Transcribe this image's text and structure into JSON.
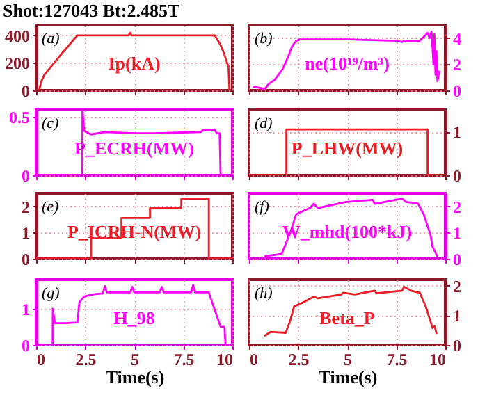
{
  "chart_data": [
    {
      "type": "line",
      "title": "Shot:127043  Bt:2.485T",
      "annotations": [
        "(a)",
        "Ip(kA)"
      ],
      "xlim": [
        0,
        10
      ],
      "xticks": [
        0,
        2.5,
        5,
        7.5,
        10
      ],
      "ylim": [
        0,
        475
      ],
      "yticks": [
        0,
        200,
        400
      ],
      "grid": true,
      "tick_labels": "y",
      "series": [
        {
          "color": "#ee1c25",
          "x": [
            0.15,
            0.25,
            0.4,
            1.2,
            2.1,
            4.7,
            4.8,
            4.85,
            9.1,
            9.4,
            9.6,
            9.75,
            9.8,
            9.85
          ],
          "values": [
            0,
            60,
            110,
            250,
            400,
            400,
            420,
            400,
            400,
            330,
            260,
            190,
            180,
            0
          ]
        }
      ]
    },
    {
      "type": "line",
      "annotations": [
        "(b)",
        "ne(10¹⁹/m³)"
      ],
      "xlim": [
        0,
        10
      ],
      "xticks": [
        0,
        2.5,
        5,
        7.5,
        10
      ],
      "ylim": [
        0,
        5
      ],
      "yticks": [
        0,
        2,
        4
      ],
      "grid": true,
      "tick_labels": "y",
      "series": [
        {
          "color": "#ff00ff",
          "x": [
            0.2,
            0.5,
            0.8,
            1.0,
            1.3,
            1.7,
            2.0,
            2.2,
            2.4,
            2.6,
            5,
            7.5,
            7.8,
            7.9,
            8.7,
            8.9,
            9.1,
            9.2,
            9.3,
            9.4,
            9.45,
            9.5,
            9.55,
            9.6,
            9.7
          ],
          "values": [
            0.3,
            0.2,
            0.1,
            0.5,
            0.8,
            1.6,
            2.6,
            3.4,
            3.8,
            3.9,
            3.9,
            3.8,
            3.7,
            3.8,
            3.8,
            4.1,
            4.4,
            4.0,
            4.5,
            2.0,
            4.3,
            1.2,
            3.0,
            0.7,
            1.5
          ]
        }
      ]
    },
    {
      "type": "line",
      "annotations": [
        "(c)",
        "P_ECRH(MW)"
      ],
      "xlim": [
        0,
        10
      ],
      "xticks": [
        0,
        2.5,
        5,
        7.5,
        10
      ],
      "ylim": [
        0,
        0.56
      ],
      "yticks": [
        0,
        0.5
      ],
      "grid": true,
      "tick_labels": "y",
      "series": [
        {
          "color": "#ff00ff",
          "x": [
            0,
            2.35,
            2.36,
            2.45,
            2.8,
            3.5,
            5,
            6,
            8.4,
            8.5,
            9.1,
            9.2,
            9.35,
            9.4,
            10
          ],
          "values": [
            0,
            0,
            0.56,
            0.38,
            0.35,
            0.37,
            0.36,
            0.36,
            0.37,
            0.39,
            0.39,
            0.36,
            0.36,
            0,
            0
          ]
        }
      ]
    },
    {
      "type": "step",
      "annotations": [
        "(d)",
        "P_LHW(MW)"
      ],
      "xlim": [
        0,
        10
      ],
      "xticks": [
        0,
        2.5,
        5,
        7.5,
        10
      ],
      "ylim": [
        0,
        1.5
      ],
      "yticks": [
        0,
        1
      ],
      "grid": true,
      "tick_labels": "y",
      "series": [
        {
          "color": "#ee1c25",
          "x": [
            0,
            1.9,
            9.1,
            10
          ],
          "values": [
            0,
            1.05,
            0,
            0
          ]
        }
      ]
    },
    {
      "type": "step",
      "annotations": [
        "(e)",
        "P_ICRH-N(MW)"
      ],
      "xlim": [
        0,
        10
      ],
      "xticks": [
        0,
        2.5,
        5,
        7.5,
        10
      ],
      "ylim": [
        0,
        2.5
      ],
      "yticks": [
        0,
        1,
        2
      ],
      "grid": true,
      "tick_labels": "y",
      "series": [
        {
          "color": "#ee1c25",
          "x": [
            0,
            2.8,
            4.35,
            5.8,
            7.4,
            8.8,
            10
          ],
          "values": [
            0,
            0.78,
            1.56,
            1.93,
            2.29,
            0,
            0
          ]
        }
      ]
    },
    {
      "type": "line",
      "annotations": [
        "(f)",
        "W_mhd(100*kJ)"
      ],
      "xlim": [
        0,
        10
      ],
      "xticks": [
        0,
        2.5,
        5,
        7.5,
        10
      ],
      "ylim": [
        0,
        2.5
      ],
      "yticks": [
        0,
        1,
        2
      ],
      "grid": true,
      "tick_labels": "y",
      "series": [
        {
          "color": "#ff00ff",
          "x": [
            0.79,
            1.66,
            2.1,
            2.4,
            3.1,
            3.3,
            3.5,
            4.5,
            4.95,
            6.3,
            6.4,
            7.8,
            8.0,
            8.6,
            8.9,
            9.25,
            9.35,
            9.6
          ],
          "values": [
            0.1,
            0.18,
            1.0,
            1.7,
            1.94,
            2.1,
            1.94,
            2.1,
            2.17,
            2.25,
            2.1,
            2.3,
            2.17,
            2.12,
            1.7,
            0.9,
            0.46,
            0.08
          ]
        }
      ]
    },
    {
      "type": "line",
      "annotations": [
        "(g)",
        "H_98"
      ],
      "xlabel": "Time(s)",
      "xlim": [
        0,
        10
      ],
      "xticks": [
        0,
        2.5,
        5,
        7.5,
        10
      ],
      "ylim": [
        0,
        1.8
      ],
      "yticks": [
        0,
        1
      ],
      "grid": true,
      "series": [
        {
          "color": "#ff00ff",
          "x": [
            0.84,
            0.85,
            0.95,
            1.5,
            2.1,
            2.2,
            2.45,
            3.0,
            3.4,
            3.5,
            3.6,
            4.8,
            4.9,
            5.0,
            6.3,
            6.4,
            6.5,
            7.9,
            8.0,
            8.1,
            8.8,
            8.9,
            9.3,
            9.4,
            9.6,
            9.65
          ],
          "values": [
            0,
            1.0,
            0.6,
            0.6,
            0.62,
            1.17,
            1.34,
            1.4,
            1.42,
            1.62,
            1.45,
            1.45,
            1.6,
            1.45,
            1.45,
            1.6,
            1.45,
            1.45,
            1.65,
            1.45,
            1.45,
            1.28,
            0.66,
            0.5,
            0.5,
            0
          ]
        }
      ]
    },
    {
      "type": "line",
      "annotations": [
        "(h)",
        "Beta_P"
      ],
      "xlabel": "Time(s)",
      "xlim": [
        0,
        10
      ],
      "xticks": [
        0,
        2.5,
        5,
        7.5,
        10
      ],
      "ylim": [
        0,
        2.2
      ],
      "yticks": [
        0,
        1,
        2
      ],
      "grid": true,
      "series": [
        {
          "color": "#ee1c25",
          "x": [
            0.77,
            1.1,
            1.87,
            2.1,
            2.3,
            2.75,
            3.3,
            3.5,
            4.7,
            4.8,
            5.4,
            6.4,
            6.5,
            7.8,
            7.9,
            8.25,
            8.7,
            9.0,
            9.23,
            9.35,
            9.45,
            9.56
          ],
          "values": [
            0.3,
            0.44,
            0.41,
            0.83,
            1.3,
            1.43,
            1.63,
            1.57,
            1.7,
            1.76,
            1.7,
            1.83,
            1.74,
            1.83,
            1.96,
            1.83,
            1.76,
            1.3,
            0.83,
            0.57,
            0.64,
            0.37
          ]
        }
      ]
    }
  ]
}
